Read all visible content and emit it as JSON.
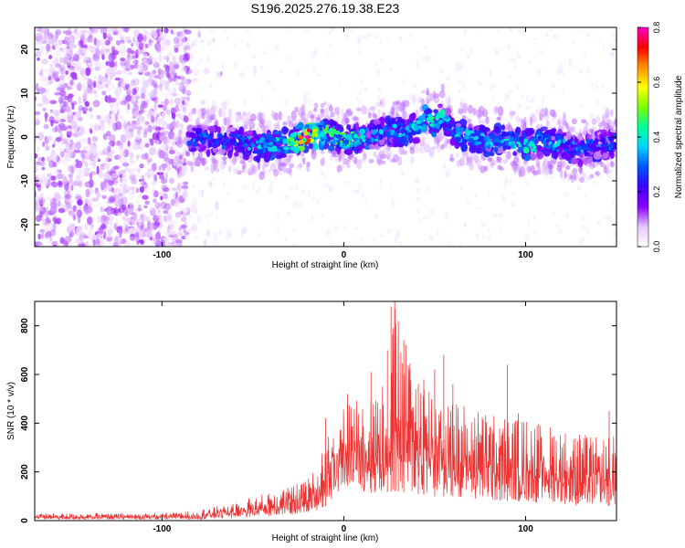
{
  "title": "S196.2025.276.19.38.E23",
  "chart_data": [
    {
      "type": "heatmap",
      "name": "spectrogram",
      "xlabel": "Height of straight line (km)",
      "ylabel": "Frequency (Hz)",
      "xlim": [
        -170,
        150
      ],
      "ylim": [
        -25,
        25
      ],
      "x_ticks": [
        -100,
        0,
        100
      ],
      "y_ticks": [
        -20,
        -10,
        0,
        10,
        20
      ],
      "colorbar": {
        "label": "Normalized spectral amplitude",
        "range": [
          0,
          0.8
        ],
        "ticks": [
          "0.0",
          "0.2",
          "0.4",
          "0.6",
          "0.8"
        ],
        "colormap": [
          "#ffffff",
          "#e6c8ff",
          "#8b00ff",
          "#3c00ff",
          "#0055ff",
          "#00d2ff",
          "#00ff9c",
          "#7cff00",
          "#ffff00",
          "#ff9000",
          "#ff0000",
          "#ff00c8"
        ]
      },
      "signal_track": {
        "x": [
          -85,
          -70,
          -60,
          -50,
          -40,
          -30,
          -20,
          -10,
          0,
          10,
          20,
          30,
          40,
          45,
          50,
          55,
          60,
          70,
          80,
          90,
          100,
          110,
          120,
          130,
          140,
          150
        ],
        "center_hz": [
          0,
          -1,
          -1,
          -2,
          -2,
          -1,
          0,
          1,
          -1,
          0,
          1,
          1,
          2,
          4,
          3,
          5,
          1,
          0,
          -1,
          0,
          -2,
          -1,
          -2,
          -3,
          -2,
          -1
        ],
        "peak_amplitude": [
          0.35,
          0.3,
          0.3,
          0.4,
          0.45,
          0.5,
          0.8,
          0.5,
          0.5,
          0.45,
          0.4,
          0.4,
          0.45,
          0.5,
          0.45,
          0.45,
          0.4,
          0.4,
          0.4,
          0.4,
          0.45,
          0.4,
          0.4,
          0.35,
          0.35,
          0.3
        ]
      },
      "noise_region": {
        "x_range": [
          -170,
          -85
        ],
        "freq_range": [
          -25,
          25
        ],
        "amplitude": 0.1
      }
    },
    {
      "type": "line",
      "name": "snr",
      "color": "#ee3333",
      "xlabel": "Height of straight line (km)",
      "ylabel": "SNR (10 * v/v)",
      "xlim": [
        -170,
        150
      ],
      "ylim": [
        0,
        900
      ],
      "x_ticks": [
        -100,
        0,
        100
      ],
      "y_ticks": [
        0,
        200,
        400,
        600,
        800
      ],
      "envelope": {
        "x": [
          -170,
          -140,
          -110,
          -90,
          -80,
          -70,
          -60,
          -50,
          -40,
          -30,
          -20,
          -15,
          -10,
          -5,
          0,
          10,
          20,
          25,
          28,
          30,
          40,
          50,
          60,
          70,
          80,
          90,
          100,
          110,
          120,
          130,
          140,
          150
        ],
        "low": [
          5,
          5,
          5,
          5,
          5,
          8,
          10,
          15,
          20,
          25,
          30,
          40,
          60,
          100,
          150,
          120,
          110,
          120,
          120,
          120,
          110,
          100,
          100,
          90,
          80,
          80,
          80,
          70,
          70,
          60,
          60,
          60
        ],
        "high": [
          30,
          30,
          30,
          35,
          45,
          60,
          80,
          100,
          120,
          140,
          170,
          220,
          350,
          420,
          480,
          530,
          560,
          620,
          900,
          800,
          620,
          560,
          500,
          470,
          450,
          430,
          420,
          400,
          380,
          360,
          340,
          350
        ]
      },
      "spikes": [
        {
          "x": 26,
          "y": 880
        },
        {
          "x": 28,
          "y": 900
        },
        {
          "x": 30,
          "y": 820
        },
        {
          "x": 24,
          "y": 700
        },
        {
          "x": 33,
          "y": 740
        },
        {
          "x": 41,
          "y": 560
        },
        {
          "x": 44,
          "y": 580
        },
        {
          "x": 50,
          "y": 620
        },
        {
          "x": 55,
          "y": 680
        },
        {
          "x": 60,
          "y": 560
        },
        {
          "x": 15,
          "y": 610
        },
        {
          "x": 2,
          "y": 520
        },
        {
          "x": 90,
          "y": 640
        },
        {
          "x": 96,
          "y": 440
        },
        {
          "x": -10,
          "y": 420
        },
        {
          "x": 146,
          "y": 450
        }
      ]
    }
  ]
}
